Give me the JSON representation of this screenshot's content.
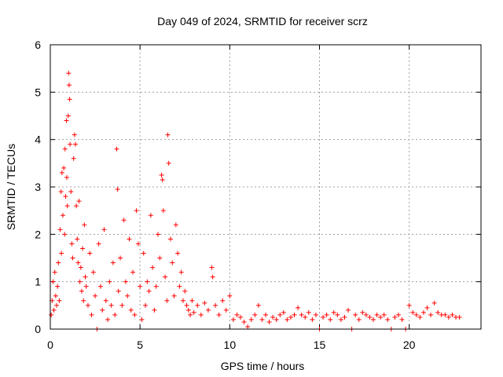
{
  "chart_data": {
    "type": "scatter",
    "title": "Day 049 of 2024, SRMTID for receiver scrz",
    "xlabel": "GPS time / hours",
    "ylabel": "SRMTID / TECUs",
    "xlim": [
      0,
      24
    ],
    "ylim": [
      0,
      6
    ],
    "xticks": [
      0,
      5,
      10,
      15,
      20
    ],
    "xtick_labels": [
      "0",
      "5",
      "10",
      "15",
      "20"
    ],
    "yticks": [
      0,
      1,
      2,
      3,
      4,
      5,
      6
    ],
    "ytick_labels": [
      "0",
      "1",
      "2",
      "3",
      "4",
      "5",
      "6"
    ],
    "grid": true,
    "marker": "+",
    "color": "#ff0000",
    "series": [
      {
        "name": "SRMTID",
        "points": [
          [
            0.05,
            0.3
          ],
          [
            0.1,
            0.6
          ],
          [
            0.15,
            1.0
          ],
          [
            0.2,
            0.4
          ],
          [
            0.25,
            1.2
          ],
          [
            0.3,
            0.7
          ],
          [
            0.35,
            0.5
          ],
          [
            0.4,
            0.9
          ],
          [
            0.45,
            1.4
          ],
          [
            0.5,
            0.6
          ],
          [
            0.55,
            2.1
          ],
          [
            0.6,
            2.9
          ],
          [
            0.62,
            1.6
          ],
          [
            0.65,
            3.3
          ],
          [
            0.7,
            2.4
          ],
          [
            0.75,
            3.4
          ],
          [
            0.8,
            2.0
          ],
          [
            0.82,
            3.8
          ],
          [
            0.85,
            2.8
          ],
          [
            0.9,
            4.4
          ],
          [
            0.92,
            3.2
          ],
          [
            0.95,
            2.6
          ],
          [
            1.0,
            4.5
          ],
          [
            1.02,
            5.4
          ],
          [
            1.05,
            5.15
          ],
          [
            1.08,
            4.85
          ],
          [
            1.1,
            3.9
          ],
          [
            1.15,
            2.9
          ],
          [
            1.2,
            1.8
          ],
          [
            1.25,
            1.5
          ],
          [
            1.3,
            3.6
          ],
          [
            1.35,
            4.1
          ],
          [
            1.4,
            3.9
          ],
          [
            1.45,
            2.6
          ],
          [
            1.5,
            1.9
          ],
          [
            1.55,
            1.4
          ],
          [
            1.6,
            2.7
          ],
          [
            1.65,
            1.0
          ],
          [
            1.7,
            1.3
          ],
          [
            1.75,
            0.8
          ],
          [
            1.8,
            1.7
          ],
          [
            1.85,
            0.6
          ],
          [
            1.9,
            2.2
          ],
          [
            1.95,
            1.1
          ],
          [
            2.0,
            0.9
          ],
          [
            2.1,
            0.5
          ],
          [
            2.2,
            1.6
          ],
          [
            2.3,
            0.3
          ],
          [
            2.4,
            1.2
          ],
          [
            2.5,
            0.7
          ],
          [
            2.6,
            0.0
          ],
          [
            2.7,
            1.8
          ],
          [
            2.8,
            0.9
          ],
          [
            2.9,
            0.4
          ],
          [
            3.0,
            2.1
          ],
          [
            3.1,
            0.6
          ],
          [
            3.2,
            0.2
          ],
          [
            3.3,
            1.0
          ],
          [
            3.4,
            0.5
          ],
          [
            3.5,
            1.4
          ],
          [
            3.6,
            0.3
          ],
          [
            3.7,
            3.8
          ],
          [
            3.75,
            2.95
          ],
          [
            3.8,
            0.8
          ],
          [
            3.9,
            1.5
          ],
          [
            4.0,
            0.5
          ],
          [
            4.1,
            2.3
          ],
          [
            4.2,
            1.0
          ],
          [
            4.3,
            0.7
          ],
          [
            4.4,
            1.9
          ],
          [
            4.5,
            0.4
          ],
          [
            4.6,
            1.2
          ],
          [
            4.7,
            0.3
          ],
          [
            4.8,
            2.5
          ],
          [
            4.9,
            1.8
          ],
          [
            5.0,
            0.9
          ],
          [
            5.1,
            0.2
          ],
          [
            5.2,
            1.6
          ],
          [
            5.3,
            0.5
          ],
          [
            5.4,
            1.0
          ],
          [
            5.5,
            0.8
          ],
          [
            5.6,
            2.4
          ],
          [
            5.7,
            1.3
          ],
          [
            5.8,
            0.4
          ],
          [
            5.9,
            0.9
          ],
          [
            6.0,
            2.0
          ],
          [
            6.1,
            1.5
          ],
          [
            6.2,
            3.25
          ],
          [
            6.25,
            3.15
          ],
          [
            6.3,
            2.5
          ],
          [
            6.4,
            1.1
          ],
          [
            6.5,
            0.6
          ],
          [
            6.55,
            4.1
          ],
          [
            6.6,
            3.5
          ],
          [
            6.7,
            1.9
          ],
          [
            6.8,
            1.4
          ],
          [
            6.9,
            0.7
          ],
          [
            7.0,
            2.2
          ],
          [
            7.1,
            1.6
          ],
          [
            7.2,
            0.9
          ],
          [
            7.3,
            1.2
          ],
          [
            7.4,
            0.6
          ],
          [
            7.5,
            0.8
          ],
          [
            7.6,
            0.5
          ],
          [
            7.7,
            0.4
          ],
          [
            7.8,
            0.3
          ],
          [
            7.9,
            0.6
          ],
          [
            8.0,
            0.35
          ],
          [
            8.2,
            0.5
          ],
          [
            8.4,
            0.3
          ],
          [
            8.6,
            0.55
          ],
          [
            8.8,
            0.4
          ],
          [
            9.0,
            1.3
          ],
          [
            9.05,
            1.1
          ],
          [
            9.2,
            0.5
          ],
          [
            9.4,
            0.3
          ],
          [
            9.6,
            0.6
          ],
          [
            9.8,
            0.4
          ],
          [
            10.0,
            0.7
          ],
          [
            10.2,
            0.2
          ],
          [
            10.4,
            0.3
          ],
          [
            10.6,
            0.25
          ],
          [
            10.8,
            0.15
          ],
          [
            11.0,
            0.05
          ],
          [
            11.2,
            0.2
          ],
          [
            11.4,
            0.3
          ],
          [
            11.6,
            0.5
          ],
          [
            11.8,
            0.2
          ],
          [
            12.0,
            0.3
          ],
          [
            12.2,
            0.15
          ],
          [
            12.4,
            0.25
          ],
          [
            12.6,
            0.2
          ],
          [
            12.8,
            0.3
          ],
          [
            13.0,
            0.35
          ],
          [
            13.2,
            0.2
          ],
          [
            13.4,
            0.25
          ],
          [
            13.6,
            0.3
          ],
          [
            13.8,
            0.45
          ],
          [
            14.0,
            0.3
          ],
          [
            14.2,
            0.25
          ],
          [
            14.4,
            0.35
          ],
          [
            14.6,
            0.2
          ],
          [
            14.8,
            0.3
          ],
          [
            15.0,
            0.0
          ],
          [
            15.2,
            0.25
          ],
          [
            15.4,
            0.3
          ],
          [
            15.6,
            0.2
          ],
          [
            15.8,
            0.35
          ],
          [
            16.0,
            0.3
          ],
          [
            16.2,
            0.2
          ],
          [
            16.4,
            0.25
          ],
          [
            16.6,
            0.4
          ],
          [
            16.8,
            0.0
          ],
          [
            17.0,
            0.3
          ],
          [
            17.2,
            0.2
          ],
          [
            17.4,
            0.35
          ],
          [
            17.6,
            0.3
          ],
          [
            17.8,
            0.25
          ],
          [
            18.0,
            0.2
          ],
          [
            18.2,
            0.3
          ],
          [
            18.4,
            0.25
          ],
          [
            18.6,
            0.3
          ],
          [
            18.8,
            0.2
          ],
          [
            19.0,
            0.0
          ],
          [
            19.2,
            0.25
          ],
          [
            19.4,
            0.3
          ],
          [
            19.6,
            0.2
          ],
          [
            19.8,
            0.0
          ],
          [
            20.0,
            0.5
          ],
          [
            20.2,
            0.35
          ],
          [
            20.4,
            0.3
          ],
          [
            20.6,
            0.25
          ],
          [
            20.8,
            0.35
          ],
          [
            21.0,
            0.45
          ],
          [
            21.2,
            0.3
          ],
          [
            21.4,
            0.55
          ],
          [
            21.6,
            0.35
          ],
          [
            21.8,
            0.3
          ],
          [
            22.0,
            0.3
          ],
          [
            22.2,
            0.25
          ],
          [
            22.4,
            0.3
          ],
          [
            22.6,
            0.25
          ],
          [
            22.8,
            0.25
          ]
        ]
      }
    ]
  }
}
